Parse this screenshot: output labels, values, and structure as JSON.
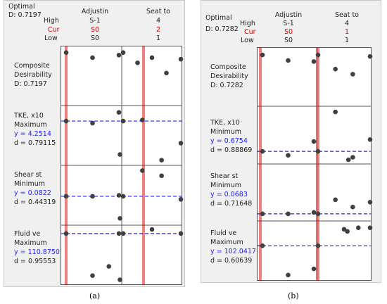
{
  "colors": {
    "cur": "#e00000",
    "goal": "#2323ff",
    "point": "#404040",
    "grid": "#555555"
  },
  "chart_data": [
    {
      "type": "scatter",
      "panel_label": "(a)",
      "optimal_label": "Optimal",
      "d_value": "D: 0.7197",
      "row_labels": {
        "high": "High",
        "cur": "Cur",
        "low": "Low"
      },
      "factors": [
        {
          "name": "Adjustin",
          "high": "S-1",
          "cur": "S0",
          "low": "S0"
        },
        {
          "name": "Seat to",
          "high": "4",
          "cur": "2",
          "low": "1"
        }
      ],
      "responses": [
        {
          "title": "Composite",
          "title2": "Desirability",
          "goal": "",
          "y": "",
          "d": "D: 0.7197",
          "f1_vals": [
            0.95,
            0.85,
            0.9
          ],
          "f2_vals": [
            0.95,
            0.75,
            0.85,
            0.55,
            0.82
          ],
          "ylim": [
            0,
            1
          ],
          "ref": null
        },
        {
          "title": "TKE, x10",
          "title2": "",
          "goal": "Maximum",
          "y": "y = 4.2514",
          "d": "d = 0.79115",
          "f1_vals": [
            0.78,
            0.74,
            0.95
          ],
          "f2_vals": [
            0.78,
            0.8,
            0.02,
            0.35
          ],
          "f1_extra": [
            {
              "x": 0.97,
              "v": 0.13
            }
          ],
          "ylim": [
            0,
            1
          ],
          "ref": 0.78
        },
        {
          "title": "Shear st",
          "title2": "",
          "goal": "Minimum",
          "y": "y = 0.0822",
          "d": "d = 0.44319",
          "f1_vals": [
            0.48,
            0.48,
            0.5
          ],
          "f2_vals": [
            0.48,
            0.98,
            0.88,
            0.42
          ],
          "f1_extra": [
            {
              "x": 0.97,
              "v": 0.05
            }
          ],
          "ylim": [
            0,
            1
          ],
          "ref": 0.48
        },
        {
          "title": "Fluid ve",
          "title2": "",
          "goal": "Maximum",
          "y": "y = 110.8750",
          "d": "d = 0.95553",
          "f1_vals": [
            0.92,
            0.1,
            0.92
          ],
          "f2_vals": [
            0.92,
            1.0,
            0.92
          ],
          "f1_extra": [
            {
              "x": 0.78,
              "v": 0.28
            },
            {
              "x": 0.97,
              "v": 0.02
            }
          ],
          "ylim": [
            0,
            1
          ],
          "ref": 0.92
        }
      ]
    },
    {
      "type": "scatter",
      "panel_label": "(b)",
      "optimal_label": "Optimal",
      "d_value": "D: 0.7282",
      "row_labels": {
        "high": "High",
        "cur": "Cur",
        "low": "Low"
      },
      "factors": [
        {
          "name": "Adjustin",
          "high": "S-1",
          "cur": "S0",
          "low": "S0"
        },
        {
          "name": "Seat to",
          "high": "4",
          "cur": "1",
          "low": "1"
        }
      ],
      "responses": [
        {
          "title": "Composite",
          "title2": "Desirability",
          "goal": "",
          "y": "",
          "d": "D: 0.7282",
          "f1_vals": [
            0.93,
            0.82,
            0.8
          ],
          "f2_vals": [
            0.93,
            0.65,
            0.55,
            0.9
          ],
          "ylim": [
            0,
            1
          ],
          "ref": null
        },
        {
          "title": "TKE, x10",
          "title2": "",
          "goal": "Minimum",
          "y": "y = 0.6754",
          "d": "d = 0.88869",
          "f1_vals": [
            0.17,
            0.09,
            0.37
          ],
          "f2_vals": [
            0.17,
            0.97,
            0.05,
            0.41
          ],
          "f1_extra": [],
          "f2_extra": [
            {
              "x": 0.58,
              "v": 0.0
            }
          ],
          "ylim": [
            0,
            1
          ],
          "ref": 0.17
        },
        {
          "title": "Shear st",
          "title2": "",
          "goal": "Minimum",
          "y": "y = 0.0683",
          "d": "d = 0.71648",
          "f1_vals": [
            0.06,
            0.06,
            0.09
          ],
          "f2_vals": [
            0.06,
            0.35,
            0.2,
            0.3
          ],
          "ylim": [
            0,
            1
          ],
          "ref": 0.06
        },
        {
          "title": "Fluid ve",
          "title2": "",
          "goal": "Maximum",
          "y": "y = 102.0417",
          "d": "d = 0.60639",
          "f1_vals": [
            0.6,
            0.03,
            0.15
          ],
          "f2_vals": [
            0.6,
            0.92,
            0.95
          ],
          "f2_extra": [
            {
              "x": 0.56,
              "v": 0.88
            },
            {
              "x": 0.76,
              "v": 0.95
            }
          ],
          "ylim": [
            0,
            1
          ],
          "ref": 0.6
        }
      ]
    }
  ]
}
